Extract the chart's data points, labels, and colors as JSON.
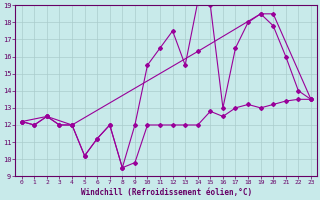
{
  "xlabel": "Windchill (Refroidissement éolien,°C)",
  "bg_color": "#c8eaea",
  "line_color": "#990099",
  "grid_color": "#aacccc",
  "axis_color": "#660066",
  "tick_color": "#660066",
  "xlim": [
    -0.5,
    23.5
  ],
  "ylim": [
    9,
    19
  ],
  "xticks": [
    0,
    1,
    2,
    3,
    4,
    5,
    6,
    7,
    8,
    9,
    10,
    11,
    12,
    13,
    14,
    15,
    16,
    17,
    18,
    19,
    20,
    21,
    22,
    23
  ],
  "yticks": [
    9,
    10,
    11,
    12,
    13,
    14,
    15,
    16,
    17,
    18,
    19
  ],
  "line1_x": [
    0,
    1,
    2,
    3,
    4,
    5,
    6,
    7,
    8,
    9,
    10,
    11,
    12,
    13,
    14,
    15,
    16,
    17,
    18,
    19,
    20,
    21,
    22,
    23
  ],
  "line1_y": [
    12.2,
    12.0,
    12.5,
    12.0,
    12.0,
    10.2,
    11.2,
    12.0,
    9.5,
    9.8,
    12.0,
    12.0,
    12.0,
    12.0,
    12.0,
    12.8,
    12.5,
    13.0,
    13.2,
    13.0,
    13.2,
    13.4,
    13.5,
    13.5
  ],
  "line2_x": [
    0,
    1,
    2,
    3,
    4,
    5,
    6,
    7,
    8,
    9,
    10,
    11,
    12,
    13,
    14,
    15,
    16,
    17,
    18,
    19,
    20,
    21,
    22,
    23
  ],
  "line2_y": [
    12.2,
    12.0,
    12.5,
    12.0,
    12.0,
    10.2,
    11.2,
    12.0,
    9.5,
    12.0,
    15.5,
    16.5,
    17.5,
    15.5,
    19.2,
    19.0,
    13.0,
    16.5,
    18.0,
    18.5,
    17.8,
    16.0,
    14.0,
    13.5
  ],
  "line3_x": [
    0,
    2,
    4,
    14,
    19,
    20,
    23
  ],
  "line3_y": [
    12.2,
    12.5,
    12.0,
    16.3,
    18.5,
    18.5,
    13.5
  ]
}
